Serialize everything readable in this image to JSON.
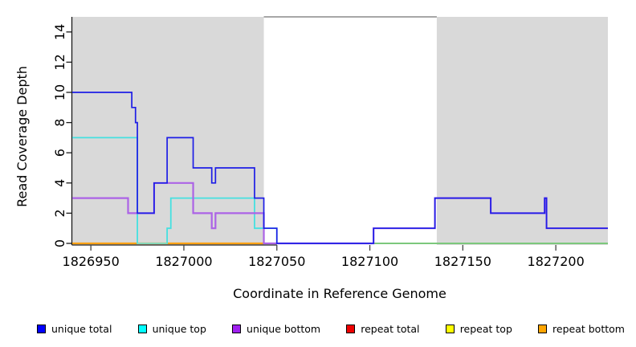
{
  "chart_data": {
    "type": "line",
    "step": true,
    "title": "",
    "x_label": "Coordinate in Reference Genome",
    "y_label": "Read Coverage Depth",
    "x_ticks": [
      "1826950",
      "1827000",
      "1827050",
      "1827100",
      "1827150",
      "1827200"
    ],
    "x_tick_values": [
      1826950,
      1827000,
      1827050,
      1827100,
      1827150,
      1827200
    ],
    "y_ticks": [
      "0",
      "2",
      "4",
      "6",
      "8",
      "10",
      "12",
      "14"
    ],
    "y_tick_values": [
      0,
      2,
      4,
      6,
      8,
      10,
      12,
      14
    ],
    "x_range": [
      1826940,
      1827228
    ],
    "y_range": [
      0,
      15
    ],
    "grid": false,
    "shaded_regions": {
      "color": "#D9D9D9",
      "meaning": "repeat regions",
      "regions": [
        [
          1826940,
          1827043
        ],
        [
          1827136,
          1827228
        ]
      ]
    },
    "series": [
      {
        "name": "repeat top",
        "color": "#FFFF00",
        "width": 1.3,
        "points": [
          [
            1826940,
            0
          ],
          [
            1827228,
            0
          ]
        ]
      },
      {
        "name": "repeat total",
        "color": "#E06A96",
        "width": 1.4,
        "points": [
          [
            1826940,
            0
          ],
          [
            1827228,
            0
          ]
        ]
      },
      {
        "name": "repeat bottom",
        "color": "#FFA113",
        "width": 2.2,
        "points": [
          [
            1826940,
            0
          ],
          [
            1827043,
            0
          ]
        ]
      },
      {
        "name": "unique top",
        "color": "#45E0E0",
        "width": 1.8,
        "points": [
          [
            1826940,
            7
          ],
          [
            1826975,
            7
          ],
          [
            1826975,
            0
          ],
          [
            1826991,
            0
          ],
          [
            1826991,
            1
          ],
          [
            1826993,
            1
          ],
          [
            1826993,
            3
          ],
          [
            1827038,
            3
          ],
          [
            1827038,
            1
          ],
          [
            1827050,
            1
          ],
          [
            1827050,
            0
          ],
          [
            1827228,
            0
          ]
        ]
      },
      {
        "name": "unique bottom",
        "color": "#AC63E6",
        "width": 2.2,
        "points": [
          [
            1826940,
            3
          ],
          [
            1826970,
            3
          ],
          [
            1826970,
            2
          ],
          [
            1826984,
            2
          ],
          [
            1826984,
            4
          ],
          [
            1827005,
            4
          ],
          [
            1827005,
            2
          ],
          [
            1827015,
            2
          ],
          [
            1827015,
            1
          ],
          [
            1827017,
            1
          ],
          [
            1827017,
            2
          ],
          [
            1827043,
            2
          ],
          [
            1827043,
            0
          ],
          [
            1827102,
            0
          ],
          [
            1827102,
            1
          ],
          [
            1827135,
            1
          ],
          [
            1827135,
            3
          ],
          [
            1827165,
            3
          ],
          [
            1827165,
            2
          ],
          [
            1827194,
            2
          ],
          [
            1827194,
            3
          ],
          [
            1827195,
            3
          ],
          [
            1827195,
            1
          ],
          [
            1827228,
            1
          ]
        ]
      },
      {
        "name": "unique total",
        "color": "#1E1EE6",
        "width": 1.7,
        "points": [
          [
            1826940,
            10
          ],
          [
            1826972,
            10
          ],
          [
            1826972,
            9
          ],
          [
            1826974,
            9
          ],
          [
            1826974,
            8
          ],
          [
            1826975,
            8
          ],
          [
            1826975,
            2
          ],
          [
            1826984,
            2
          ],
          [
            1826984,
            4
          ],
          [
            1826991,
            4
          ],
          [
            1826991,
            7
          ],
          [
            1827005,
            7
          ],
          [
            1827005,
            5
          ],
          [
            1827015,
            5
          ],
          [
            1827015,
            4
          ],
          [
            1827017,
            4
          ],
          [
            1827017,
            5
          ],
          [
            1827038,
            5
          ],
          [
            1827038,
            3
          ],
          [
            1827043,
            3
          ],
          [
            1827043,
            1
          ],
          [
            1827050,
            1
          ],
          [
            1827050,
            0
          ],
          [
            1827102,
            0
          ],
          [
            1827102,
            1
          ],
          [
            1827135,
            1
          ],
          [
            1827135,
            3
          ],
          [
            1827165,
            3
          ],
          [
            1827165,
            2
          ],
          [
            1827194,
            2
          ],
          [
            1827194,
            3
          ],
          [
            1827195,
            3
          ],
          [
            1827195,
            1
          ],
          [
            1827228,
            1
          ]
        ]
      }
    ],
    "overlay_segments": [
      {
        "name": "cyan-over-orange-blend",
        "color": "#85D8B8",
        "width": 2.0,
        "level": 0,
        "from": 1826975,
        "to": 1826991
      },
      {
        "name": "cyan-over-yellow-blend",
        "color": "#7CC87C",
        "width": 2.0,
        "level": 0,
        "from": 1827102,
        "to": 1827228
      }
    ],
    "legend_position": "bottom"
  },
  "legend": {
    "items": [
      {
        "label": "unique total",
        "color": "#0000FF"
      },
      {
        "label": "unique top",
        "color": "#00FFFF"
      },
      {
        "label": "unique bottom",
        "color": "#A020F0"
      },
      {
        "label": "repeat total",
        "color": "#EE0000"
      },
      {
        "label": "repeat top",
        "color": "#FFFF00"
      },
      {
        "label": "repeat bottom",
        "color": "#FFA500"
      }
    ]
  },
  "figure": {
    "x_axis_title": "Coordinate in Reference Genome",
    "y_axis_title": "Read Coverage Depth"
  }
}
